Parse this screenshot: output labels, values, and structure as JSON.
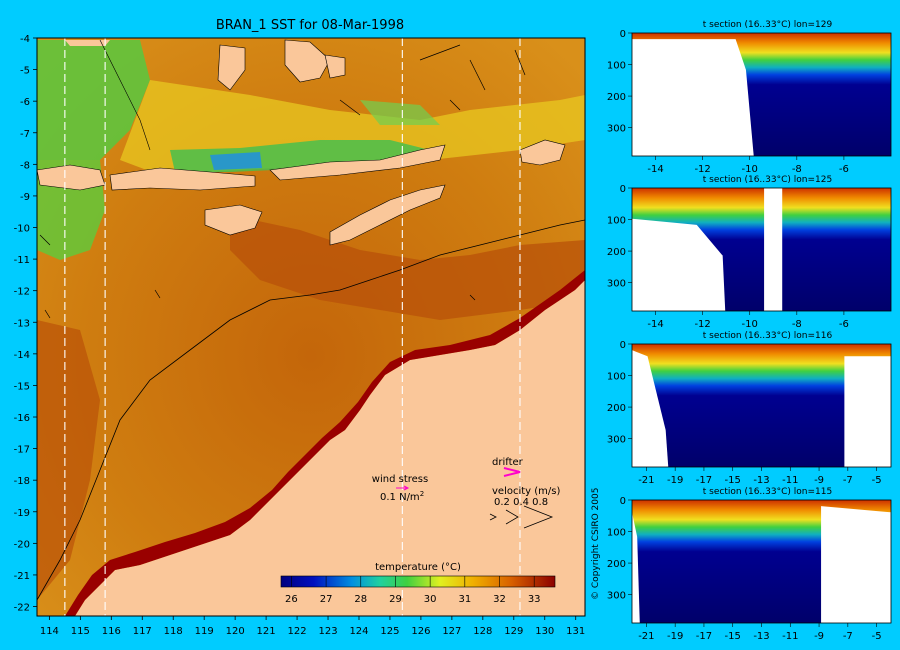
{
  "main_title": "BRAN_1 SST for 08-Mar-1998",
  "map": {
    "lon_ticks": [
      "114",
      "115",
      "116",
      "117",
      "118",
      "119",
      "120",
      "121",
      "122",
      "123",
      "124",
      "125",
      "126",
      "127",
      "128",
      "129",
      "130",
      "131"
    ],
    "lat_ticks": [
      "-4",
      "-5",
      "-6",
      "-7",
      "-8",
      "-9",
      "-10",
      "-11",
      "-12",
      "-13",
      "-14",
      "-15",
      "-16",
      "-17",
      "-18",
      "-19",
      "-20",
      "-21",
      "-22"
    ],
    "section_lons": [
      114.5,
      115.8,
      125.4,
      129.2
    ],
    "colors": {
      "ocean_warm": "#b24a00",
      "ocean_mid": "#d98a10",
      "land": "#fac79a",
      "shelf": "#990000",
      "background": "#00ccff"
    }
  },
  "legend": {
    "wind_label": "wind stress",
    "wind_scale": "0.1 N/m",
    "wind_sup": "2",
    "drifter_label": "drifter",
    "velocity_label": "velocity (m/s)",
    "velocity_values": "0.2 0.4 0.8",
    "colorbar_title": "temperature (°C)",
    "colorbar_ticks": [
      "26",
      "27",
      "28",
      "29",
      "30",
      "31",
      "32",
      "33"
    ],
    "colorbar_range": [
      25.7,
      33.6
    ]
  },
  "copyright": "© Copyright CSIRO 2005",
  "sections": [
    {
      "title": "t section (16..33°C) lon=129",
      "x_ticks": [
        "-14",
        "-12",
        "-10",
        "-8",
        "-6"
      ],
      "y_ticks": [
        "0",
        "100",
        "200",
        "300"
      ],
      "x_range": [
        -15.0,
        -4.0
      ],
      "depth_max": 390
    },
    {
      "title": "t section (16..33°C) lon=125",
      "x_ticks": [
        "-14",
        "-12",
        "-10",
        "-8",
        "-6"
      ],
      "y_ticks": [
        "0",
        "100",
        "200",
        "300"
      ],
      "x_range": [
        -15.0,
        -4.0
      ],
      "depth_max": 390
    },
    {
      "title": "t section (16..33°C) lon=116",
      "x_ticks": [
        "-21",
        "-19",
        "-17",
        "-15",
        "-13",
        "-11",
        "-9",
        "-7",
        "-5"
      ],
      "y_ticks": [
        "0",
        "100",
        "200",
        "300"
      ],
      "x_range": [
        -22.0,
        -4.0
      ],
      "depth_max": 390
    },
    {
      "title": "t section (16..33°C) lon=115",
      "x_ticks": [
        "-21",
        "-19",
        "-17",
        "-15",
        "-13",
        "-11",
        "-9",
        "-7",
        "-5"
      ],
      "y_ticks": [
        "0",
        "100",
        "200",
        "300"
      ],
      "x_range": [
        -22.0,
        -4.0
      ],
      "depth_max": 390
    }
  ]
}
